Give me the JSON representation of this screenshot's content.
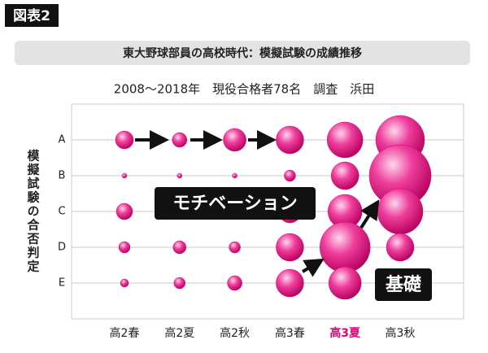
{
  "figure_label": "図表2",
  "chart_data": {
    "type": "bubble",
    "title": "東大野球部員の高校時代：模擬試験の成績推移",
    "subtitle": "2008～2018年　現役合格者78名　調査　浜田",
    "y_axis_label": "模擬試験の合否判定",
    "categories": [
      "高2春",
      "高2夏",
      "高2秋",
      "高3春",
      "高3夏",
      "高3秋"
    ],
    "highlight_index": 4,
    "color": "#e0007a",
    "series": [
      {
        "name": "A",
        "values": [
          11,
          9,
          14,
          17,
          22,
          30
        ]
      },
      {
        "name": "B",
        "values": [
          3,
          3,
          3,
          7,
          17,
          38
        ]
      },
      {
        "name": "C",
        "values": [
          10,
          9,
          9,
          14,
          21,
          28
        ]
      },
      {
        "name": "D",
        "values": [
          7,
          8,
          7,
          17,
          31,
          17
        ]
      },
      {
        "name": "E",
        "values": [
          5,
          7,
          9,
          17,
          20,
          null
        ]
      }
    ],
    "annotations": [
      "モチベーション",
      "基礎"
    ]
  }
}
